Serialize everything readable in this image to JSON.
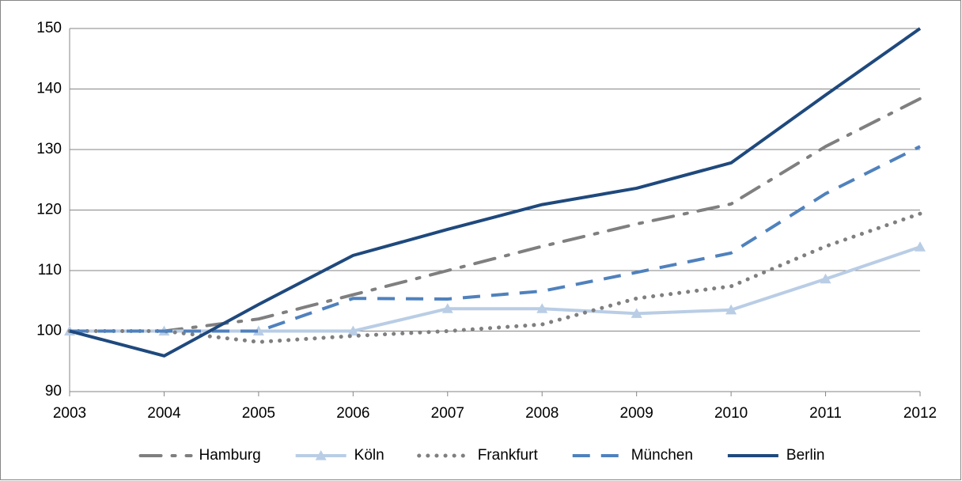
{
  "chart_data": {
    "type": "line",
    "categories": [
      "2003",
      "2004",
      "2005",
      "2006",
      "2007",
      "2008",
      "2009",
      "2010",
      "2011",
      "2012"
    ],
    "series": [
      {
        "name": "Hamburg",
        "color": "#7f7f7f",
        "dash": "dash-dot",
        "values": [
          100,
          100,
          102,
          106,
          110,
          114,
          117.7,
          121,
          130.5,
          138.4
        ]
      },
      {
        "name": "Köln",
        "color": "#b9cde5",
        "dash": "solid",
        "marker": "triangle",
        "values": [
          100,
          100,
          100,
          100,
          103.7,
          103.7,
          102.9,
          103.5,
          108.6,
          113.9
        ]
      },
      {
        "name": "Frankfurt",
        "color": "#7f7f7f",
        "dash": "dot",
        "values": [
          100,
          100,
          98.2,
          99.2,
          100,
          101.1,
          105.4,
          107.4,
          114,
          119.4
        ]
      },
      {
        "name": "München",
        "color": "#4f81bd",
        "dash": "dash",
        "values": [
          100,
          100,
          100,
          105.4,
          105.3,
          106.6,
          109.7,
          112.9,
          122.7,
          130.5
        ]
      },
      {
        "name": "Berlin",
        "color": "#1f497d",
        "dash": "solid",
        "values": [
          100,
          95.9,
          104.4,
          112.5,
          116.8,
          120.9,
          123.6,
          127.8,
          139,
          150
        ]
      }
    ],
    "ylim": [
      90,
      150
    ],
    "yticks": [
      90,
      100,
      110,
      120,
      130,
      140,
      150
    ],
    "grid": true,
    "legend": "bottom"
  }
}
